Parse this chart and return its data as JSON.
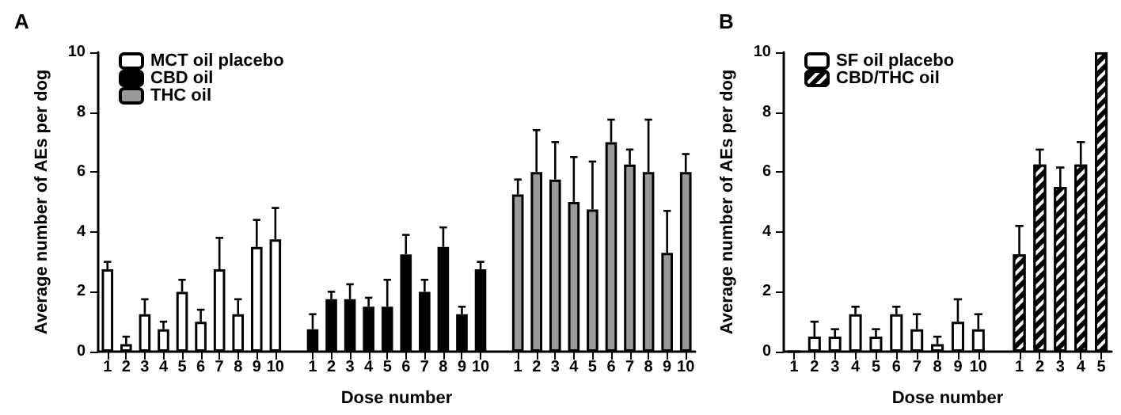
{
  "chart_data": [
    {
      "type": "bar",
      "title": "A",
      "xlabel": "Dose number",
      "ylabel": "Average number of AEs per dog",
      "categories": [
        "1",
        "2",
        "3",
        "4",
        "5",
        "6",
        "7",
        "8",
        "9",
        "10",
        null,
        "1",
        "2",
        "3",
        "4",
        "5",
        "6",
        "7",
        "8",
        "9",
        "10",
        null,
        "1",
        "2",
        "3",
        "4",
        "5",
        "6",
        "7",
        "8",
        "9",
        "10"
      ],
      "series": [
        {
          "name": "MCT oil placebo",
          "color": "#ffffff",
          "values": [
            2.75,
            0.25,
            1.25,
            0.75,
            2.0,
            1.0,
            2.75,
            1.25,
            3.5,
            3.75,
            null,
            null,
            null,
            null,
            null,
            null,
            null,
            null,
            null,
            null,
            null,
            null,
            null,
            null,
            null,
            null,
            null,
            null,
            null,
            null,
            null,
            null
          ],
          "errors": [
            [
              2.75,
              3.0
            ],
            [
              0.25,
              0.5
            ],
            [
              1.25,
              1.75
            ],
            [
              0.75,
              1.0
            ],
            [
              2.0,
              2.4
            ],
            [
              1.0,
              1.4
            ],
            [
              2.75,
              3.8
            ],
            [
              1.25,
              1.75
            ],
            [
              3.5,
              4.4
            ],
            [
              3.75,
              4.8
            ],
            null,
            null,
            null,
            null,
            null,
            null,
            null,
            null,
            null,
            null,
            null,
            null,
            null,
            null,
            null,
            null,
            null,
            null,
            null,
            null,
            null,
            null
          ]
        },
        {
          "name": "CBD oil",
          "color": "#000000",
          "values": [
            null,
            null,
            null,
            null,
            null,
            null,
            null,
            null,
            null,
            null,
            null,
            0.75,
            1.75,
            1.75,
            1.5,
            1.5,
            3.25,
            2.0,
            3.5,
            1.25,
            2.75,
            null,
            null,
            null,
            null,
            null,
            null,
            null,
            null,
            null,
            null,
            null
          ],
          "errors": [
            null,
            null,
            null,
            null,
            null,
            null,
            null,
            null,
            null,
            null,
            null,
            [
              0.75,
              1.25
            ],
            [
              1.75,
              2.0
            ],
            [
              1.75,
              2.25
            ],
            [
              1.5,
              1.8
            ],
            [
              1.5,
              2.4
            ],
            [
              3.25,
              3.9
            ],
            [
              2.0,
              2.4
            ],
            [
              3.5,
              4.15
            ],
            [
              1.25,
              1.5
            ],
            [
              2.75,
              3.0
            ],
            null,
            null,
            null,
            null,
            null,
            null,
            null,
            null,
            null,
            null,
            null
          ]
        },
        {
          "name": "THC oil",
          "color": "#999999",
          "values": [
            null,
            null,
            null,
            null,
            null,
            null,
            null,
            null,
            null,
            null,
            null,
            null,
            null,
            null,
            null,
            null,
            null,
            null,
            null,
            null,
            null,
            null,
            5.25,
            6.0,
            5.75,
            5.0,
            4.75,
            7.0,
            6.25,
            6.0,
            3.3,
            6.0
          ],
          "errors": [
            null,
            null,
            null,
            null,
            null,
            null,
            null,
            null,
            null,
            null,
            null,
            null,
            null,
            null,
            null,
            null,
            null,
            null,
            null,
            null,
            null,
            null,
            [
              5.25,
              5.75
            ],
            [
              6.0,
              7.4
            ],
            [
              5.75,
              7.0
            ],
            [
              5.0,
              6.5
            ],
            [
              4.75,
              6.35
            ],
            [
              7.0,
              7.75
            ],
            [
              6.25,
              6.75
            ],
            [
              6.0,
              7.75
            ],
            [
              3.3,
              4.7
            ],
            [
              6.0,
              6.6
            ]
          ]
        }
      ],
      "ylim": [
        0,
        10
      ],
      "yticks": [
        0,
        2,
        4,
        6,
        8,
        10
      ],
      "grid": false,
      "legend": "top left"
    },
    {
      "type": "bar",
      "title": "B",
      "xlabel": "Dose number",
      "ylabel": "Average number of AEs per dog",
      "categories": [
        "1",
        "2",
        "3",
        "4",
        "5",
        "6",
        "7",
        "8",
        "9",
        "10",
        null,
        "1",
        "2",
        "3",
        "4",
        "5"
      ],
      "series": [
        {
          "name": "SF oil placebo",
          "color": "#ffffff",
          "values": [
            0,
            0.5,
            0.5,
            1.25,
            0.5,
            1.25,
            0.75,
            0.25,
            1.0,
            0.75,
            null,
            null,
            null,
            null,
            null,
            null
          ],
          "errors": [
            null,
            [
              0.5,
              1.0
            ],
            [
              0.5,
              0.75
            ],
            [
              1.25,
              1.5
            ],
            [
              0.5,
              0.75
            ],
            [
              1.25,
              1.5
            ],
            [
              0.75,
              1.25
            ],
            [
              0.25,
              0.5
            ],
            [
              1.0,
              1.75
            ],
            [
              0.75,
              1.25
            ],
            null,
            null,
            null,
            null,
            null,
            null
          ]
        },
        {
          "name": "CBD/THC oil",
          "color": "#000000",
          "values": [
            null,
            null,
            null,
            null,
            null,
            null,
            null,
            null,
            null,
            null,
            null,
            3.25,
            6.25,
            5.5,
            6.25,
            10
          ],
          "errors": [
            null,
            null,
            null,
            null,
            null,
            null,
            null,
            null,
            null,
            null,
            null,
            [
              3.25,
              4.2
            ],
            [
              6.25,
              6.75
            ],
            [
              5.5,
              6.15
            ],
            [
              6.25,
              7.0
            ],
            null
          ]
        }
      ],
      "ylim": [
        0,
        10
      ],
      "yticks": [
        0,
        2,
        4,
        6,
        8,
        10
      ],
      "grid": false,
      "legend": "top left"
    }
  ]
}
